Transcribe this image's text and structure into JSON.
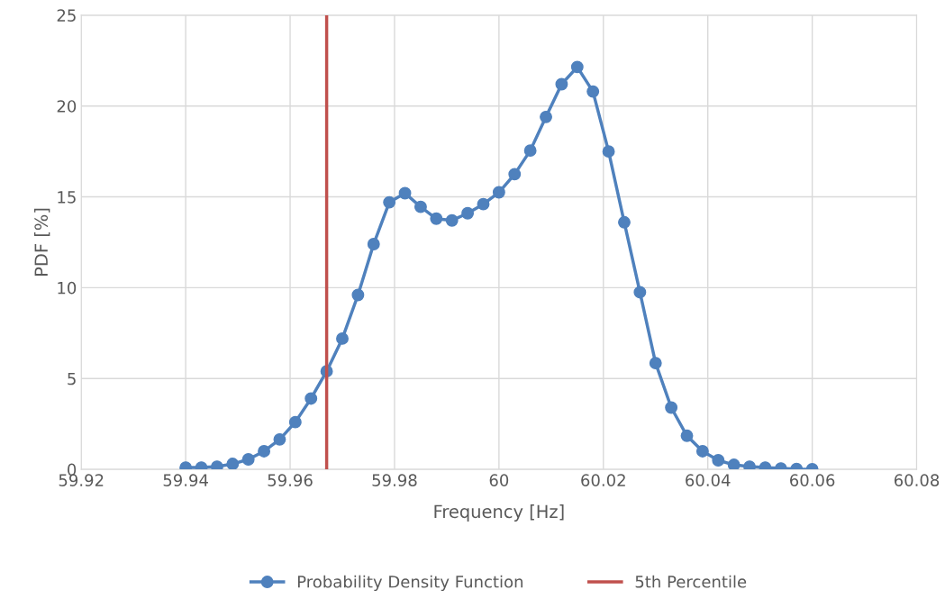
{
  "chart_data": {
    "type": "line",
    "xlabel": "Frequency [Hz]",
    "ylabel": "PDF [%]",
    "series": [
      {
        "name": "Probability Density Function",
        "color": "#4f81bd",
        "x": [
          59.94,
          59.943,
          59.946,
          59.949,
          59.952,
          59.955,
          59.958,
          59.961,
          59.964,
          59.967,
          59.97,
          59.973,
          59.976,
          59.979,
          59.982,
          59.985,
          59.988,
          59.991,
          59.994,
          59.997,
          60.0,
          60.003,
          60.006,
          60.009,
          60.012,
          60.015,
          60.018,
          60.021,
          60.024,
          60.027,
          60.03,
          60.033,
          60.036,
          60.039,
          60.042,
          60.045,
          60.048,
          60.051,
          60.054,
          60.057,
          60.06
        ],
        "values": [
          0.1,
          0.1,
          0.15,
          0.3,
          0.55,
          1.0,
          1.65,
          2.6,
          3.9,
          5.4,
          7.2,
          9.6,
          12.4,
          14.7,
          15.2,
          14.45,
          13.8,
          13.7,
          14.1,
          14.6,
          15.25,
          16.25,
          17.55,
          19.4,
          21.2,
          22.15,
          20.8,
          17.5,
          13.6,
          9.75,
          5.85,
          3.4,
          1.85,
          1.0,
          0.5,
          0.25,
          0.15,
          0.1,
          0.05,
          0.02,
          0.01
        ]
      }
    ],
    "ref_lines": [
      {
        "axis": "x",
        "value": 59.967,
        "label": "5th Percentile",
        "color": "#c0504d",
        "line_style": "solid"
      }
    ],
    "xlim": [
      59.92,
      60.08
    ],
    "xticks": [
      59.92,
      59.94,
      59.96,
      59.98,
      60,
      60.02,
      60.04,
      60.06,
      60.08
    ],
    "ylim": [
      0,
      25
    ],
    "yticks": [
      0,
      5,
      10,
      15,
      20,
      25
    ],
    "grid": true,
    "legend": "bottom",
    "marker": "circle",
    "line_style": "solid"
  }
}
